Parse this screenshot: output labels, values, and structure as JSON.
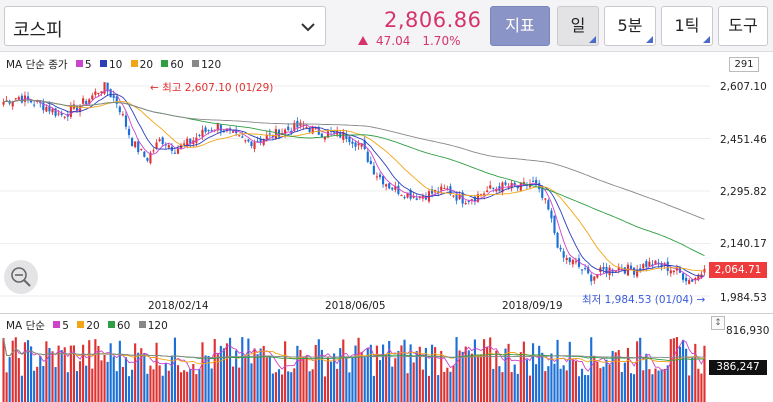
{
  "header": {
    "index_name": "코스피",
    "price": "2,806.86",
    "change": "47.04",
    "change_pct": "1.70%",
    "buttons": {
      "indicator": "지표",
      "day": "일",
      "minute": "5분",
      "tick": "1틱",
      "tools": "도구"
    }
  },
  "price_legend": {
    "title": "MA 단순 종가",
    "ma": [
      "5",
      "10",
      "20",
      "60",
      "120"
    ]
  },
  "volume_legend": {
    "title": "MA 단순",
    "ma": [
      "5",
      "20",
      "60",
      "120"
    ]
  },
  "price_axis": {
    "count": "291",
    "labels": [
      "2,607.10",
      "2,451.46",
      "2,295.82",
      "2,140.17",
      "1,984.53"
    ],
    "last": "2,064.71"
  },
  "volume_axis": {
    "max": "816,930",
    "last": "386,247"
  },
  "x_labels": [
    "2018/02/14",
    "2018/06/05",
    "2018/09/19"
  ],
  "annotations": {
    "high": "← 최고 2,607.10 (01/29)",
    "low": "최저 1,984.53 (01/04) →"
  },
  "colors": {
    "up": "#e03131",
    "down": "#1c6fd6",
    "ma5": "#cc44cc",
    "ma10": "#2b3fb8",
    "ma20": "#f2a516",
    "ma60": "#2f9e44",
    "ma120": "#888888"
  },
  "chart_data": {
    "type": "candlestick",
    "y_range": [
      1984.53,
      2607.1
    ],
    "high": {
      "value": 2607.1,
      "date": "01/29"
    },
    "low": {
      "value": 1984.53,
      "date": "01/04"
    },
    "last": 2064.71,
    "closes_approx": [
      2560,
      2575,
      2560,
      2545,
      2520,
      2540,
      2570,
      2607,
      2555,
      2440,
      2390,
      2450,
      2420,
      2440,
      2470,
      2490,
      2460,
      2440,
      2450,
      2465,
      2480,
      2490,
      2470,
      2465,
      2460,
      2430,
      2350,
      2310,
      2290,
      2280,
      2290,
      2300,
      2270,
      2280,
      2300,
      2310,
      2305,
      2320,
      2250,
      2100,
      2080,
      2040,
      2060,
      2070,
      2060,
      2080,
      2075,
      2060,
      2030,
      2060
    ]
  }
}
